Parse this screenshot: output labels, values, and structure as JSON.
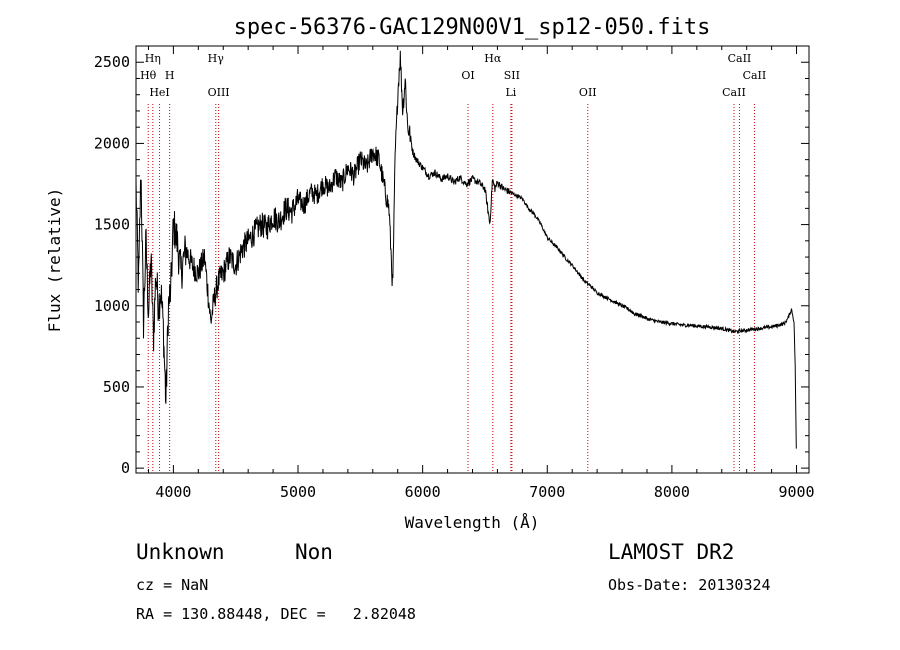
{
  "chart_data": {
    "type": "line",
    "title": "spec-56376-GAC129N00V1_sp12-050.fits",
    "xlabel": "Wavelength (Å)",
    "ylabel": "Flux (relative)",
    "xlim": [
      3700,
      9100
    ],
    "ylim": [
      -30,
      2600
    ],
    "xticks": [
      4000,
      5000,
      6000,
      7000,
      8000,
      9000
    ],
    "yticks": [
      0,
      500,
      1000,
      1500,
      2000,
      2500
    ],
    "grid": false,
    "legend": "none",
    "line_color": "#000000",
    "marker_color": "#cc0000",
    "series": [
      {
        "x": [
          3700,
          3720,
          3740,
          3760,
          3780,
          3800,
          3820,
          3840,
          3860,
          3880,
          3900,
          3920,
          3940,
          3960,
          3980,
          4000,
          4030,
          4060,
          4100,
          4150,
          4200,
          4250,
          4300,
          4330,
          4360,
          4400,
          4450,
          4500,
          4550,
          4600,
          4650,
          4700,
          4750,
          4800,
          4850,
          4900,
          4950,
          5000,
          5050,
          5100,
          5150,
          5200,
          5250,
          5300,
          5350,
          5400,
          5450,
          5500,
          5550,
          5600,
          5650,
          5700,
          5730,
          5760,
          5780,
          5790,
          5800,
          5820,
          5840,
          5860,
          5880,
          5900,
          5920,
          5950,
          6000,
          6050,
          6100,
          6150,
          6200,
          6250,
          6300,
          6350,
          6400,
          6450,
          6500,
          6540,
          6560,
          6580,
          6600,
          6650,
          6700,
          6750,
          6800,
          6850,
          6900,
          6950,
          7000,
          7050,
          7100,
          7150,
          7200,
          7250,
          7300,
          7350,
          7400,
          7450,
          7500,
          7550,
          7600,
          7650,
          7700,
          7750,
          7800,
          7850,
          7900,
          7950,
          8000,
          8050,
          8100,
          8150,
          8200,
          8250,
          8300,
          8350,
          8400,
          8450,
          8500,
          8550,
          8600,
          8650,
          8700,
          8750,
          8800,
          8850,
          8900,
          8930,
          8950,
          8960,
          8970,
          8980,
          8990,
          9000
        ],
        "y": [
          1750,
          1100,
          1850,
          900,
          1400,
          950,
          1300,
          800,
          1200,
          1000,
          1100,
          850,
          400,
          1000,
          1100,
          1500,
          1400,
          1200,
          1350,
          1250,
          1200,
          1300,
          900,
          1050,
          1150,
          1200,
          1300,
          1250,
          1350,
          1400,
          1450,
          1500,
          1480,
          1550,
          1520,
          1600,
          1580,
          1650,
          1620,
          1700,
          1680,
          1750,
          1720,
          1800,
          1750,
          1850,
          1800,
          1900,
          1850,
          1950,
          1900,
          1700,
          1600,
          1100,
          1950,
          2100,
          2300,
          2550,
          2200,
          2400,
          2100,
          2050,
          1950,
          1900,
          1850,
          1800,
          1820,
          1780,
          1800,
          1760,
          1790,
          1750,
          1780,
          1760,
          1720,
          1500,
          1780,
          1720,
          1760,
          1720,
          1700,
          1680,
          1660,
          1600,
          1560,
          1500,
          1420,
          1380,
          1340,
          1290,
          1250,
          1200,
          1150,
          1120,
          1080,
          1060,
          1040,
          1020,
          1000,
          980,
          950,
          940,
          920,
          910,
          900,
          895,
          890,
          885,
          880,
          880,
          875,
          872,
          870,
          865,
          860,
          850,
          840,
          845,
          850,
          855,
          860,
          865,
          870,
          880,
          890,
          920,
          960,
          980,
          940,
          900,
          600,
          0
        ]
      }
    ],
    "lines": [
      {
        "label": "Hη",
        "x": 3835,
        "row": 0
      },
      {
        "label": "Hθ",
        "x": 3798,
        "row": 1
      },
      {
        "label": "H",
        "x": 3970,
        "row": 1
      },
      {
        "label": "HeI",
        "x": 3889,
        "row": 2
      },
      {
        "label": "Hγ",
        "x": 4340,
        "row": 0
      },
      {
        "label": "OIII",
        "x": 4363,
        "row": 2
      },
      {
        "label": "Hα",
        "x": 6563,
        "row": 0
      },
      {
        "label": "OI",
        "x": 6364,
        "row": 1
      },
      {
        "label": "SII",
        "x": 6716,
        "row": 1
      },
      {
        "label": "Li",
        "x": 6708,
        "row": 2
      },
      {
        "label": "OII",
        "x": 7325,
        "row": 2
      },
      {
        "label": "CaII",
        "x": 8542,
        "row": 0
      },
      {
        "label": "CaII",
        "x": 8662,
        "row": 1
      },
      {
        "label": "CaII",
        "x": 8498,
        "row": 2
      }
    ]
  },
  "info": {
    "object_class": "Unknown",
    "object_subclass": "Non",
    "survey": "LAMOST DR2",
    "redshift": "cz = NaN",
    "obs_date": "Obs-Date: 20130324",
    "coords": "RA = 130.88448, DEC =   2.82048"
  }
}
